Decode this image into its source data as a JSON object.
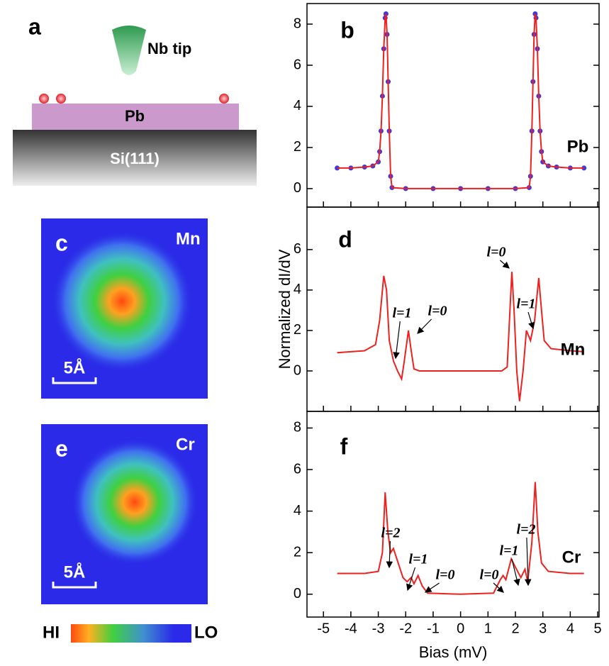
{
  "schematic": {
    "label": "a",
    "tip": "Nb tip",
    "film": "Pb",
    "substrate": "Si(111)"
  },
  "maps": [
    {
      "label": "c",
      "element": "Mn",
      "scale": "5Å"
    },
    {
      "label": "e",
      "element": "Cr",
      "scale": "5Å"
    }
  ],
  "colorbar": {
    "hi": "HI",
    "lo": "LO"
  },
  "chart_data": [
    {
      "type": "line",
      "label": "b",
      "tag": "Pb",
      "ylim": [
        -0.9,
        9
      ],
      "yticks": [
        0,
        2,
        4,
        6,
        8
      ],
      "x": [
        -4.5,
        -4,
        -3.5,
        -3.2,
        -3.0,
        -2.95,
        -2.9,
        -2.85,
        -2.8,
        -2.75,
        -2.72,
        -2.68,
        -2.64,
        -2.6,
        -2.55,
        -2.5,
        -2,
        -1,
        0,
        1,
        2,
        2.5,
        2.55,
        2.6,
        2.64,
        2.68,
        2.72,
        2.75,
        2.8,
        2.85,
        2.9,
        2.95,
        3.0,
        3.2,
        3.5,
        4,
        4.5
      ],
      "series": [
        {
          "color": "#3a3ae0",
          "style": "markers",
          "values": [
            1.0,
            1.0,
            1.05,
            1.1,
            1.3,
            1.8,
            2.8,
            4.5,
            6.8,
            8.3,
            8.5,
            7.5,
            5.2,
            2.8,
            0.6,
            0.05,
            0,
            0,
            0,
            0,
            0,
            0.05,
            0.6,
            2.8,
            5.2,
            7.5,
            8.5,
            8.3,
            6.8,
            4.5,
            2.8,
            1.8,
            1.3,
            1.1,
            1.05,
            1.0,
            1.0
          ]
        },
        {
          "color": "#ee2020",
          "style": "line",
          "values": [
            1.0,
            1.0,
            1.05,
            1.1,
            1.3,
            1.8,
            2.8,
            4.5,
            6.8,
            8.3,
            8.5,
            7.5,
            5.2,
            2.8,
            0.6,
            0.05,
            0,
            0,
            0,
            0,
            0,
            0.05,
            0.6,
            2.8,
            5.2,
            7.5,
            8.5,
            8.3,
            6.8,
            4.5,
            2.8,
            1.8,
            1.3,
            1.1,
            1.05,
            1.0,
            1.0
          ]
        }
      ]
    },
    {
      "type": "line",
      "label": "d",
      "tag": "Mn",
      "ylabel": "Normalized dI/dV",
      "ylim": [
        -2,
        8.1
      ],
      "yticks": [
        0,
        2,
        4,
        6
      ],
      "x": [
        -4.5,
        -3.5,
        -3.1,
        -2.95,
        -2.8,
        -2.7,
        -2.6,
        -2.45,
        -2.3,
        -2.15,
        -2.05,
        -1.9,
        -1.8,
        -1.7,
        -1.5,
        0,
        1.5,
        1.7,
        1.8,
        1.87,
        1.95,
        2.05,
        2.15,
        2.28,
        2.4,
        2.55,
        2.7,
        2.85,
        2.95,
        3.05,
        3.3,
        4,
        4.5
      ],
      "series": [
        {
          "color": "#ee2020",
          "style": "line",
          "values": [
            0.9,
            1.0,
            1.3,
            2.5,
            4.7,
            4.0,
            1.5,
            0.5,
            0,
            -0.4,
            0.5,
            2.0,
            1.0,
            0.1,
            0,
            0,
            0,
            0.2,
            3,
            4.9,
            3,
            0,
            -1.5,
            0,
            2.0,
            1.5,
            2.5,
            4.6,
            3.0,
            1.5,
            1.1,
            1.0,
            0.95
          ]
        }
      ],
      "annotations": [
        "l=1",
        "l=0",
        "l=0",
        "l=1"
      ]
    },
    {
      "type": "line",
      "label": "f",
      "tag": "Cr",
      "xlabel": "Bias (mV)",
      "xlim": [
        -5.6,
        5.05
      ],
      "xticks": [
        -5,
        -4,
        -3,
        -2,
        -1,
        0,
        1,
        2,
        3,
        4,
        5
      ],
      "ylim": [
        -1.1,
        8.8
      ],
      "yticks": [
        0,
        2,
        4,
        6,
        8
      ],
      "x": [
        -4.5,
        -3.5,
        -3.0,
        -2.85,
        -2.75,
        -2.65,
        -2.55,
        -2.45,
        -2.3,
        -2.1,
        -1.95,
        -1.8,
        -1.7,
        -1.55,
        -1.4,
        -1.2,
        0,
        1.2,
        1.45,
        1.55,
        1.65,
        1.85,
        2.0,
        2.2,
        2.35,
        2.45,
        2.6,
        2.72,
        2.82,
        2.95,
        3.2,
        4,
        4.5
      ],
      "series": [
        {
          "color": "#ee2020",
          "style": "line",
          "values": [
            1.0,
            1.0,
            1.1,
            2,
            4.9,
            3,
            2.0,
            2.2,
            1.6,
            0.8,
            0.6,
            0.8,
            0.5,
            0.9,
            0.4,
            0.05,
            0,
            0.05,
            0.7,
            0.9,
            0.7,
            1.7,
            1.3,
            0.8,
            1.2,
            0.6,
            2.5,
            5.4,
            3.0,
            1.5,
            1.1,
            1.0,
            1.0
          ]
        }
      ],
      "annotations": [
        "l=2",
        "l=1",
        "l=0",
        "l=0",
        "l=1",
        "l=2"
      ]
    }
  ]
}
